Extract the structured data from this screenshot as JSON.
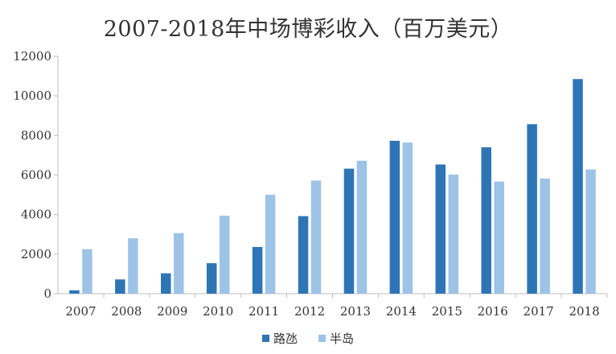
{
  "chart_data": {
    "type": "bar",
    "title": "2007-2018年中场博彩收入（百万美元）",
    "xlabel": "",
    "ylabel": "",
    "categories": [
      "2007",
      "2008",
      "2009",
      "2010",
      "2011",
      "2012",
      "2013",
      "2014",
      "2015",
      "2016",
      "2017",
      "2018"
    ],
    "series": [
      {
        "name": "路氹",
        "color": "#2e75b6",
        "values": [
          170,
          720,
          1030,
          1540,
          2360,
          3920,
          6320,
          7730,
          6530,
          7400,
          8570,
          10850
        ]
      },
      {
        "name": "半岛",
        "color": "#9dc3e6",
        "values": [
          2250,
          2800,
          3060,
          3940,
          5000,
          5720,
          6720,
          7640,
          6020,
          5670,
          5820,
          6280
        ]
      }
    ],
    "ylim": [
      0,
      12000
    ],
    "yticks": [
      "0",
      "2000",
      "4000",
      "6000",
      "8000",
      "10000",
      "12000"
    ],
    "grid": false,
    "legend_position": "bottom"
  }
}
